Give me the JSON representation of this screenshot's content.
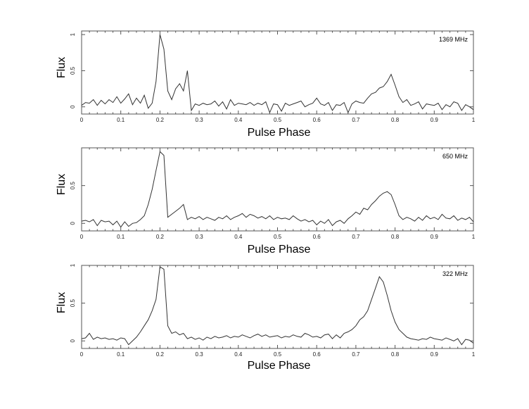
{
  "chart_data": [
    {
      "type": "line",
      "annotation": "1369 MHz",
      "xlabel": "Pulse Phase",
      "ylabel": "Flux",
      "xlim": [
        0,
        1
      ],
      "ylim": [
        -0.1,
        1.05
      ],
      "xticks": [
        0,
        0.1,
        0.2,
        0.3,
        0.4,
        0.5,
        0.6,
        0.7,
        0.8,
        0.9,
        1
      ],
      "xtick_labels": [
        "0",
        "0.1",
        "0.2",
        "0.3",
        "0.4",
        "0.5",
        "0.6",
        "0.7",
        "0.8",
        "0.9",
        "1"
      ],
      "yticks": [
        0,
        0.5,
        1
      ],
      "ytick_labels": [
        "0",
        "0.5",
        "1"
      ],
      "grid": false,
      "x": [
        0.0,
        0.01,
        0.02,
        0.03,
        0.04,
        0.05,
        0.06,
        0.07,
        0.08,
        0.09,
        0.1,
        0.11,
        0.12,
        0.13,
        0.14,
        0.15,
        0.16,
        0.17,
        0.18,
        0.19,
        0.2,
        0.21,
        0.22,
        0.23,
        0.24,
        0.25,
        0.26,
        0.27,
        0.28,
        0.29,
        0.3,
        0.31,
        0.32,
        0.33,
        0.34,
        0.35,
        0.36,
        0.37,
        0.38,
        0.39,
        0.4,
        0.41,
        0.42,
        0.43,
        0.44,
        0.45,
        0.46,
        0.47,
        0.48,
        0.49,
        0.5,
        0.51,
        0.52,
        0.53,
        0.54,
        0.55,
        0.56,
        0.57,
        0.58,
        0.59,
        0.6,
        0.61,
        0.62,
        0.63,
        0.64,
        0.65,
        0.66,
        0.67,
        0.68,
        0.69,
        0.7,
        0.71,
        0.72,
        0.73,
        0.74,
        0.75,
        0.76,
        0.77,
        0.78,
        0.79,
        0.8,
        0.81,
        0.82,
        0.83,
        0.84,
        0.85,
        0.86,
        0.87,
        0.88,
        0.89,
        0.9,
        0.91,
        0.92,
        0.93,
        0.94,
        0.95,
        0.96,
        0.97,
        0.98,
        0.99,
        1.0
      ],
      "y": [
        0.02,
        0.06,
        0.05,
        0.1,
        0.02,
        0.09,
        0.04,
        0.1,
        0.06,
        0.14,
        0.05,
        0.11,
        0.18,
        0.03,
        0.12,
        0.05,
        0.16,
        -0.02,
        0.05,
        0.35,
        1.0,
        0.8,
        0.22,
        0.1,
        0.25,
        0.32,
        0.22,
        0.5,
        -0.05,
        0.04,
        0.02,
        0.05,
        0.03,
        0.04,
        0.08,
        0.01,
        0.07,
        -0.03,
        0.1,
        0.02,
        0.05,
        0.04,
        0.03,
        0.06,
        0.02,
        0.05,
        0.03,
        0.07,
        -0.08,
        0.04,
        0.03,
        -0.06,
        0.05,
        0.02,
        0.04,
        0.06,
        0.08,
        0.0,
        0.03,
        0.05,
        0.12,
        0.04,
        0.02,
        0.06,
        -0.05,
        0.03,
        0.02,
        0.06,
        -0.08,
        0.04,
        0.08,
        0.06,
        0.05,
        0.12,
        0.18,
        0.2,
        0.26,
        0.28,
        0.35,
        0.45,
        0.3,
        0.14,
        0.06,
        0.1,
        0.02,
        0.04,
        0.07,
        -0.03,
        0.04,
        0.03,
        0.02,
        0.05,
        -0.04,
        0.03,
        0.0,
        0.07,
        0.05,
        -0.05,
        0.03,
        0.0,
        -0.04
      ]
    },
    {
      "type": "line",
      "annotation": "650 MHz",
      "xlabel": "Pulse Phase",
      "ylabel": "Flux",
      "xlim": [
        0,
        1
      ],
      "ylim": [
        -0.1,
        1.0
      ],
      "xticks": [
        0,
        0.1,
        0.2,
        0.3,
        0.4,
        0.5,
        0.6,
        0.7,
        0.8,
        0.9,
        1
      ],
      "xtick_labels": [
        "0",
        "0.1",
        "0.2",
        "0.3",
        "0.4",
        "0.5",
        "0.6",
        "0.7",
        "0.8",
        "0.9",
        "1"
      ],
      "yticks": [
        0,
        0.5
      ],
      "ytick_labels": [
        "0",
        "0.5"
      ],
      "grid": false,
      "x": [
        0.0,
        0.01,
        0.02,
        0.03,
        0.04,
        0.05,
        0.06,
        0.07,
        0.08,
        0.09,
        0.1,
        0.11,
        0.12,
        0.13,
        0.14,
        0.15,
        0.16,
        0.17,
        0.18,
        0.19,
        0.2,
        0.21,
        0.22,
        0.23,
        0.24,
        0.25,
        0.26,
        0.27,
        0.28,
        0.29,
        0.3,
        0.31,
        0.32,
        0.33,
        0.34,
        0.35,
        0.36,
        0.37,
        0.38,
        0.39,
        0.4,
        0.41,
        0.42,
        0.43,
        0.44,
        0.45,
        0.46,
        0.47,
        0.48,
        0.49,
        0.5,
        0.51,
        0.52,
        0.53,
        0.54,
        0.55,
        0.56,
        0.57,
        0.58,
        0.59,
        0.6,
        0.61,
        0.62,
        0.63,
        0.64,
        0.65,
        0.66,
        0.67,
        0.68,
        0.69,
        0.7,
        0.71,
        0.72,
        0.73,
        0.74,
        0.75,
        0.76,
        0.77,
        0.78,
        0.79,
        0.8,
        0.81,
        0.82,
        0.83,
        0.84,
        0.85,
        0.86,
        0.87,
        0.88,
        0.89,
        0.9,
        0.91,
        0.92,
        0.93,
        0.94,
        0.95,
        0.96,
        0.97,
        0.98,
        0.99,
        1.0
      ],
      "y": [
        0.03,
        0.04,
        0.02,
        0.05,
        -0.03,
        0.04,
        0.02,
        0.03,
        -0.02,
        0.03,
        -0.05,
        0.02,
        -0.04,
        0.0,
        0.01,
        0.05,
        0.1,
        0.25,
        0.45,
        0.7,
        0.95,
        0.9,
        0.08,
        0.12,
        0.16,
        0.2,
        0.25,
        0.05,
        0.08,
        0.06,
        0.09,
        0.05,
        0.08,
        0.06,
        0.04,
        0.08,
        0.06,
        0.1,
        0.05,
        0.08,
        0.1,
        0.13,
        0.08,
        0.12,
        0.1,
        0.07,
        0.09,
        0.06,
        0.1,
        0.05,
        0.08,
        0.06,
        0.07,
        0.05,
        0.1,
        0.06,
        0.03,
        0.05,
        0.02,
        0.04,
        -0.02,
        0.03,
        0.0,
        0.05,
        -0.03,
        0.02,
        0.04,
        0.0,
        0.06,
        0.1,
        0.15,
        0.12,
        0.2,
        0.18,
        0.25,
        0.3,
        0.36,
        0.4,
        0.42,
        0.38,
        0.25,
        0.1,
        0.05,
        0.08,
        0.06,
        0.03,
        0.08,
        0.04,
        0.1,
        0.06,
        0.08,
        0.05,
        0.12,
        0.07,
        0.06,
        0.1,
        0.04,
        0.07,
        0.05,
        0.08,
        0.02
      ]
    },
    {
      "type": "line",
      "annotation": "322 MHz",
      "xlabel": "Pulse Phase",
      "ylabel": "Flux",
      "xlim": [
        0,
        1
      ],
      "ylim": [
        -0.1,
        1.0
      ],
      "xticks": [
        0,
        0.1,
        0.2,
        0.3,
        0.4,
        0.5,
        0.6,
        0.7,
        0.8,
        0.9,
        1
      ],
      "xtick_labels": [
        "0",
        "0.1",
        "0.2",
        "0.3",
        "0.4",
        "0.5",
        "0.6",
        "0.7",
        "0.8",
        "0.9",
        "1"
      ],
      "yticks": [
        0,
        0.5,
        1
      ],
      "ytick_labels": [
        "0",
        "0.5",
        "1"
      ],
      "grid": false,
      "x": [
        0.0,
        0.01,
        0.02,
        0.03,
        0.04,
        0.05,
        0.06,
        0.07,
        0.08,
        0.09,
        0.1,
        0.11,
        0.12,
        0.13,
        0.14,
        0.15,
        0.16,
        0.17,
        0.18,
        0.19,
        0.2,
        0.21,
        0.22,
        0.23,
        0.24,
        0.25,
        0.26,
        0.27,
        0.28,
        0.29,
        0.3,
        0.31,
        0.32,
        0.33,
        0.34,
        0.35,
        0.36,
        0.37,
        0.38,
        0.39,
        0.4,
        0.41,
        0.42,
        0.43,
        0.44,
        0.45,
        0.46,
        0.47,
        0.48,
        0.49,
        0.5,
        0.51,
        0.52,
        0.53,
        0.54,
        0.55,
        0.56,
        0.57,
        0.58,
        0.59,
        0.6,
        0.61,
        0.62,
        0.63,
        0.64,
        0.65,
        0.66,
        0.67,
        0.68,
        0.69,
        0.7,
        0.71,
        0.72,
        0.73,
        0.74,
        0.75,
        0.76,
        0.77,
        0.78,
        0.79,
        0.8,
        0.81,
        0.82,
        0.83,
        0.84,
        0.85,
        0.86,
        0.87,
        0.88,
        0.89,
        0.9,
        0.91,
        0.92,
        0.93,
        0.94,
        0.95,
        0.96,
        0.97,
        0.98,
        0.99,
        1.0
      ],
      "y": [
        0.03,
        0.04,
        0.1,
        0.02,
        0.05,
        0.03,
        0.04,
        0.02,
        0.03,
        0.01,
        0.04,
        0.03,
        -0.05,
        0.0,
        0.05,
        0.12,
        0.2,
        0.28,
        0.4,
        0.55,
        0.98,
        0.95,
        0.2,
        0.1,
        0.12,
        0.08,
        0.1,
        0.03,
        0.05,
        0.02,
        0.04,
        0.01,
        0.05,
        0.03,
        0.06,
        0.04,
        0.05,
        0.07,
        0.04,
        0.06,
        0.05,
        0.08,
        0.06,
        0.04,
        0.07,
        0.09,
        0.06,
        0.08,
        0.05,
        0.06,
        0.07,
        0.04,
        0.06,
        0.05,
        0.08,
        0.06,
        0.05,
        0.1,
        0.08,
        0.05,
        0.06,
        0.04,
        0.08,
        0.09,
        0.03,
        0.08,
        0.04,
        0.1,
        0.12,
        0.15,
        0.2,
        0.28,
        0.32,
        0.4,
        0.55,
        0.7,
        0.85,
        0.78,
        0.6,
        0.4,
        0.25,
        0.15,
        0.1,
        0.05,
        0.03,
        0.02,
        0.01,
        0.03,
        0.02,
        0.05,
        0.03,
        0.02,
        0.01,
        0.04,
        0.02,
        0.0,
        0.03,
        -0.05,
        0.02,
        0.01,
        -0.03
      ]
    }
  ]
}
